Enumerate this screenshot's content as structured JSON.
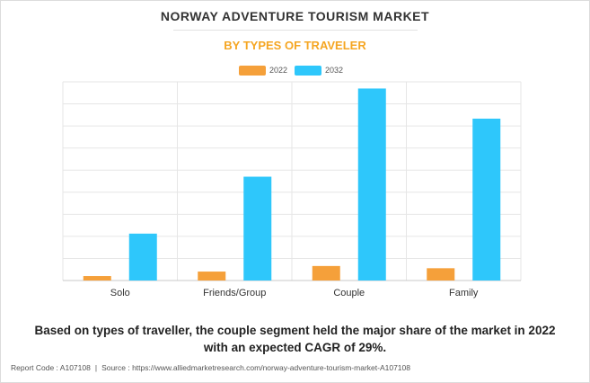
{
  "header": {
    "title": "NORWAY ADVENTURE TOURISM MARKET",
    "subtitle": "BY TYPES OF TRAVELER"
  },
  "chart_data": {
    "type": "bar",
    "categories": [
      "Solo",
      "Friends/Group",
      "Couple",
      "Family"
    ],
    "series": [
      {
        "name": "2022",
        "color": "#f5a03a",
        "values": [
          0.2,
          0.4,
          0.65,
          0.55
        ]
      },
      {
        "name": "2032",
        "color": "#2ec7fb",
        "values": [
          2.1,
          4.65,
          8.6,
          7.25
        ]
      }
    ],
    "ylim": [
      0,
      8.9
    ],
    "grid_lines": 9,
    "y_tick_labels": false,
    "legend_position": "top-center",
    "grid": true
  },
  "footnote": {
    "line1": "Based on types of traveller, the couple segment held the major share of the market in 2022",
    "line2": "with an expected CAGR of 29%."
  },
  "source": {
    "report_code": "Report Code : A107108",
    "separator": "|",
    "source_text": "Source : https://www.alliedmarketresearch.com/norway-adventure-tourism-market-A107108"
  }
}
